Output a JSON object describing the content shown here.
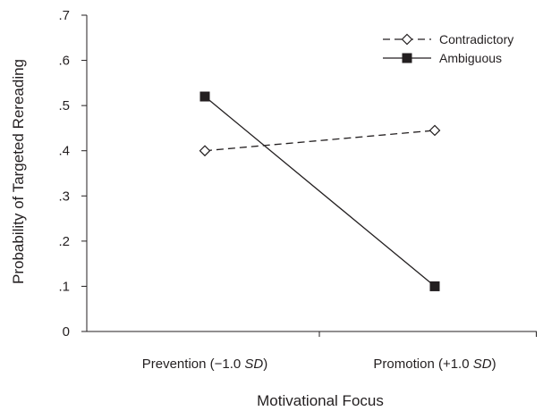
{
  "chart_data": {
    "type": "line",
    "xlabel": "Motivational Focus",
    "ylabel": "Probability of Targeted Rereading",
    "categories": [
      {
        "prefix": "Prevention (−1.0 ",
        "italic": "SD",
        "suffix": ")"
      },
      {
        "prefix": "Promotion (+1.0 ",
        "italic": "SD",
        "suffix": ")"
      }
    ],
    "ylim": [
      0,
      0.7
    ],
    "yticks": [
      0,
      0.1,
      0.2,
      0.3,
      0.4,
      0.5,
      0.6,
      0.7
    ],
    "ytick_labels": [
      "0",
      ".1",
      ".2",
      ".3",
      ".4",
      ".5",
      ".6",
      ".7"
    ],
    "grid": false,
    "legend_position": "top-right",
    "series": [
      {
        "name": "Contradictory",
        "values": [
          0.4,
          0.445
        ],
        "line_style": "dashed",
        "marker": "open-diamond",
        "color": "#231f20"
      },
      {
        "name": "Ambiguous",
        "values": [
          0.52,
          0.1
        ],
        "line_style": "solid",
        "marker": "filled-square",
        "color": "#231f20"
      }
    ]
  }
}
